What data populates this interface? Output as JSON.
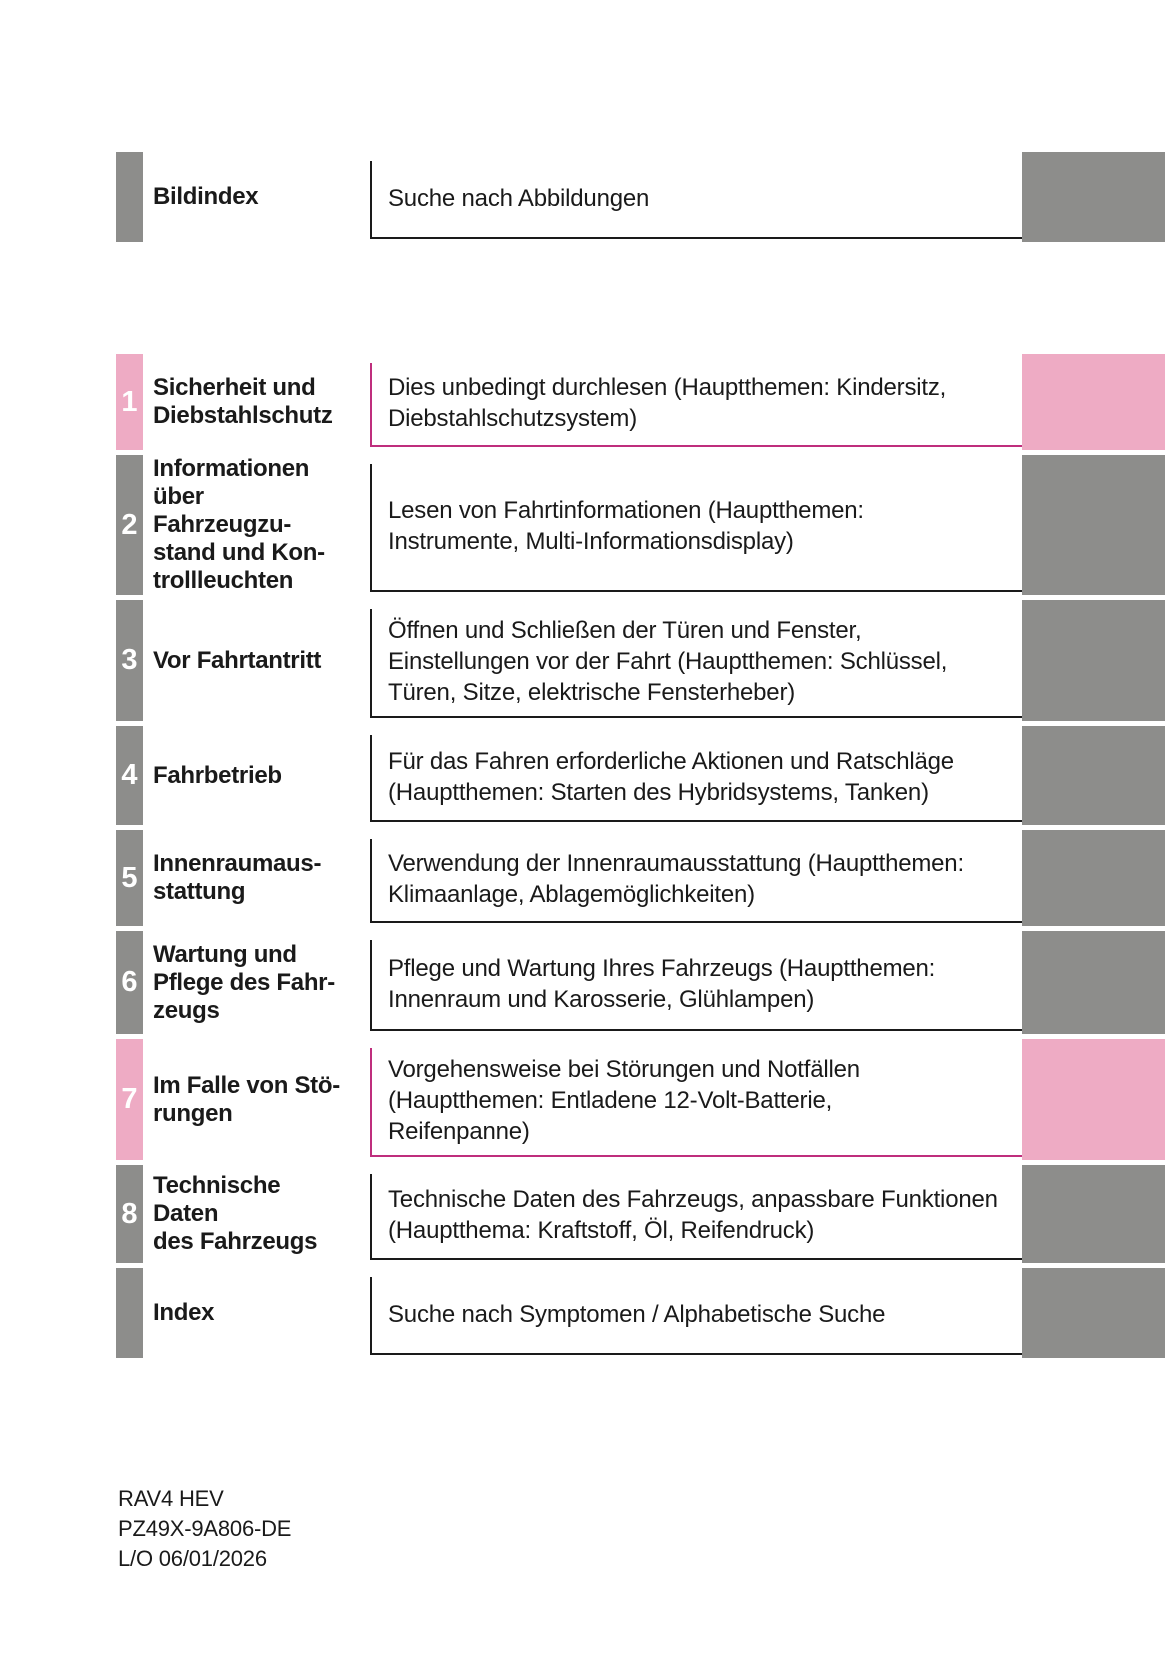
{
  "colors": {
    "pink": "#eeabc4",
    "gray": "#8d8d8b",
    "pink_border": "#bf2e7d",
    "dark_border": "#1a1a1a",
    "text": "#1a1a1a",
    "number": "#ffffff"
  },
  "rows": [
    {
      "id": "bildindex",
      "number": "",
      "accent": "gray",
      "title_lines": [
        "Bildindex"
      ],
      "desc_lines": [
        "Suche nach Abbildungen"
      ]
    },
    {
      "id": "ch1",
      "number": "1",
      "accent": "pink",
      "title_lines": [
        "Sicherheit und",
        "Diebstahlschutz"
      ],
      "desc_lines": [
        "Dies unbedingt durchlesen (Hauptthemen: Kindersitz,",
        "Diebstahlschutzsystem)"
      ]
    },
    {
      "id": "ch2",
      "number": "2",
      "accent": "gray",
      "title_lines": [
        "Informationen",
        "über Fahrzeugzu-",
        "stand und Kon-",
        "trollleuchten"
      ],
      "desc_lines": [
        "Lesen von Fahrtinformationen (Hauptthemen:",
        "Instrumente, Multi-Informationsdisplay)"
      ]
    },
    {
      "id": "ch3",
      "number": "3",
      "accent": "gray",
      "title_lines": [
        "Vor Fahrtantritt"
      ],
      "desc_lines": [
        "Öffnen und Schließen der Türen und Fenster,",
        "Einstellungen vor der Fahrt (Hauptthemen: Schlüssel,",
        "Türen, Sitze, elektrische Fensterheber)"
      ]
    },
    {
      "id": "ch4",
      "number": "4",
      "accent": "gray",
      "title_lines": [
        "Fahrbetrieb"
      ],
      "desc_lines": [
        "Für das Fahren erforderliche Aktionen und Ratschläge",
        "(Hauptthemen: Starten des Hybridsystems, Tanken)"
      ]
    },
    {
      "id": "ch5",
      "number": "5",
      "accent": "gray",
      "title_lines": [
        "Innenraumaus-",
        "stattung"
      ],
      "desc_lines": [
        "Verwendung der Innenraumausstattung (Hauptthemen:",
        "Klimaanlage, Ablagemöglichkeiten)"
      ]
    },
    {
      "id": "ch6",
      "number": "6",
      "accent": "gray",
      "title_lines": [
        "Wartung und",
        "Pflege des Fahr-",
        "zeugs"
      ],
      "desc_lines": [
        "Pflege und Wartung Ihres Fahrzeugs (Hauptthemen:",
        "Innenraum und Karosserie, Glühlampen)"
      ]
    },
    {
      "id": "ch7",
      "number": "7",
      "accent": "pink",
      "title_lines": [
        "Im Falle von Stö-",
        "rungen"
      ],
      "desc_lines": [
        "Vorgehensweise bei Störungen und Notfällen",
        "(Hauptthemen: Entladene 12-Volt-Batterie,",
        "Reifenpanne)"
      ]
    },
    {
      "id": "ch8",
      "number": "8",
      "accent": "gray",
      "title_lines": [
        "Technische Daten",
        "des Fahrzeugs"
      ],
      "desc_lines": [
        "Technische Daten des Fahrzeugs, anpassbare Funktionen",
        "(Hauptthema: Kraftstoff, Öl, Reifendruck)"
      ]
    },
    {
      "id": "index",
      "number": "",
      "accent": "gray",
      "title_lines": [
        "Index"
      ],
      "desc_lines": [
        "Suche nach Symptomen / Alphabetische Suche"
      ]
    }
  ],
  "footer": {
    "model": "RAV4 HEV",
    "part_number": "PZ49X-9A806-DE",
    "layout_date": "L/O 06/01/2026"
  }
}
